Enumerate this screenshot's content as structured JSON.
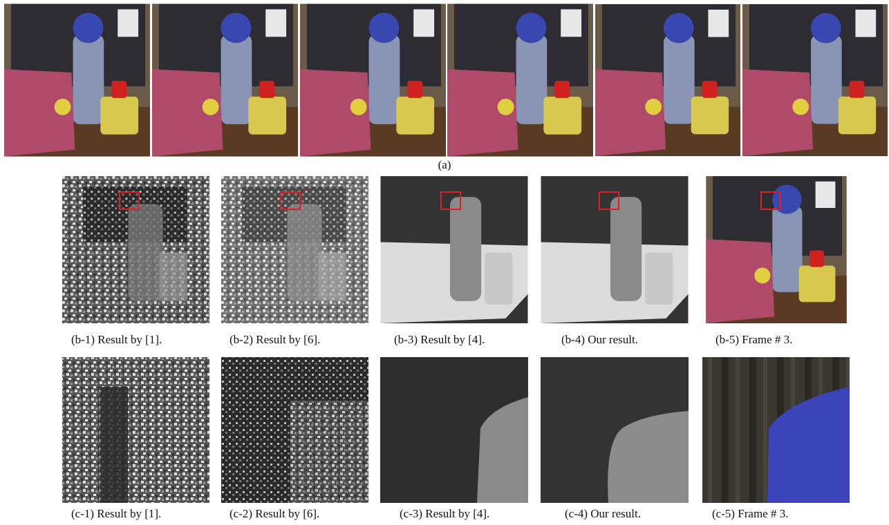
{
  "figure": {
    "row_a": {
      "caption": "(a)"
    },
    "row_b": {
      "captions": [
        "(b-1) Result by [1].",
        "(b-2) Result by [6].",
        "(b-3) Result by [4].",
        "(b-4) Our result.",
        "(b-5) Frame # 3."
      ]
    },
    "row_c": {
      "captions": [
        "(c-1) Result by [1].",
        "(c-2) Result by [6].",
        "(c-3) Result by [4].",
        "(c-4) Our result.",
        "(c-5) Frame # 3."
      ]
    }
  }
}
